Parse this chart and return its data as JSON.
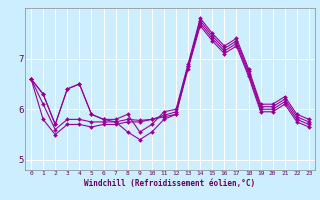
{
  "xlabel": "Windchill (Refroidissement éolien,°C)",
  "ylabel": "",
  "bg_color": "#cceeff",
  "line_color": "#990099",
  "grid_color": "#ffffff",
  "xmin": -0.5,
  "xmax": 23.5,
  "ymin": 4.8,
  "ymax": 8.0,
  "yticks": [
    5,
    6,
    7
  ],
  "xticks": [
    0,
    1,
    2,
    3,
    4,
    5,
    6,
    7,
    8,
    9,
    10,
    11,
    12,
    13,
    14,
    15,
    16,
    17,
    18,
    19,
    20,
    21,
    22,
    23
  ],
  "series": [
    [
      6.6,
      6.3,
      5.7,
      6.4,
      6.5,
      5.9,
      5.8,
      5.8,
      5.9,
      5.55,
      5.7,
      5.95,
      6.0,
      6.9,
      7.8,
      7.5,
      7.25,
      7.4,
      6.8,
      6.1,
      6.1,
      6.25,
      5.9,
      5.8
    ],
    [
      6.6,
      6.3,
      5.7,
      6.4,
      6.5,
      5.9,
      5.8,
      5.75,
      5.55,
      5.4,
      5.55,
      5.8,
      5.9,
      6.85,
      7.75,
      7.45,
      7.2,
      7.35,
      6.75,
      6.05,
      6.05,
      6.2,
      5.85,
      5.75
    ],
    [
      6.6,
      6.1,
      5.6,
      5.8,
      5.8,
      5.75,
      5.75,
      5.75,
      5.8,
      5.78,
      5.8,
      5.88,
      5.95,
      6.85,
      7.7,
      7.4,
      7.15,
      7.3,
      6.7,
      6.0,
      6.0,
      6.15,
      5.8,
      5.7
    ],
    [
      6.6,
      5.8,
      5.5,
      5.7,
      5.7,
      5.65,
      5.7,
      5.7,
      5.75,
      5.75,
      5.8,
      5.85,
      5.9,
      6.8,
      7.65,
      7.35,
      7.1,
      7.25,
      6.65,
      5.95,
      5.95,
      6.1,
      5.75,
      5.65
    ]
  ]
}
